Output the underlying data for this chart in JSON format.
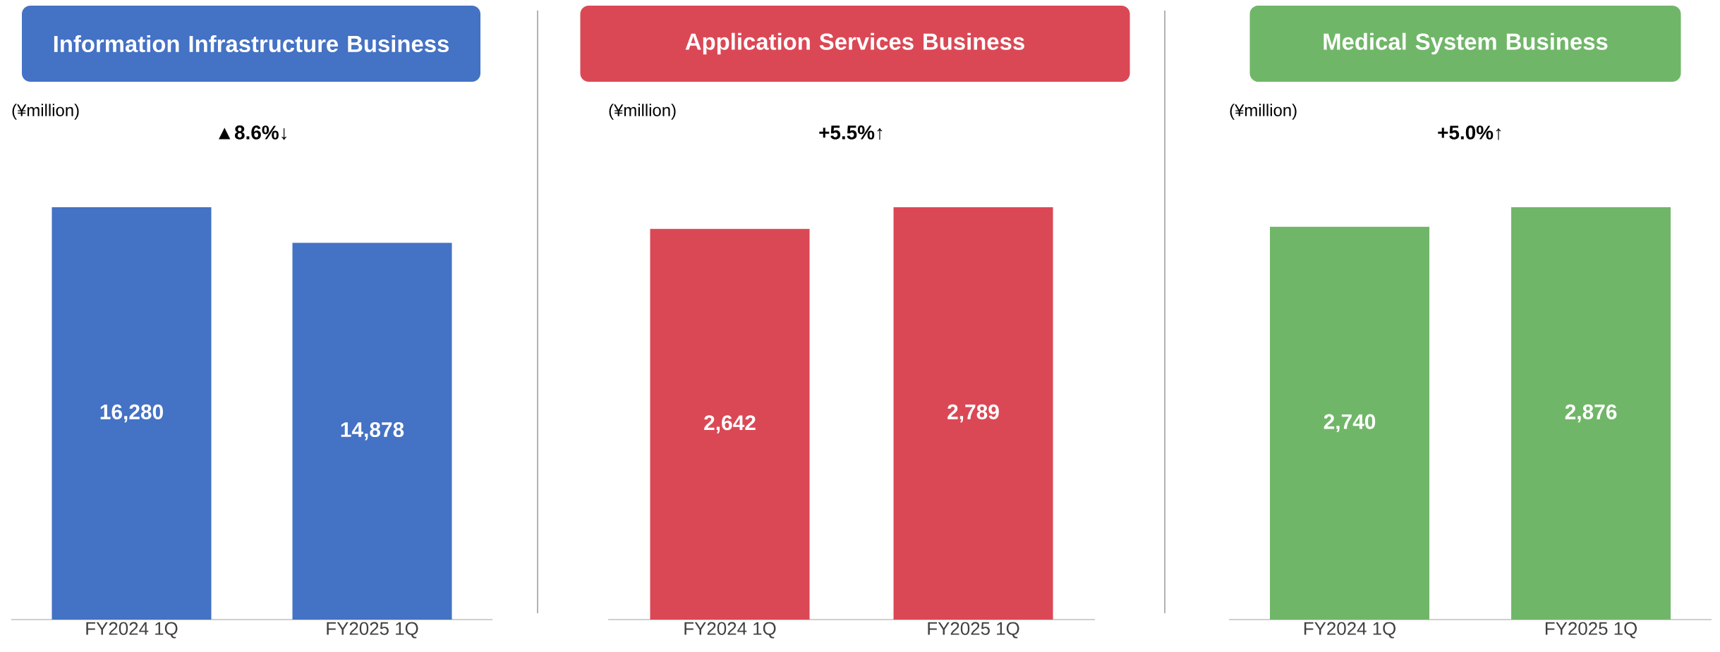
{
  "chart_data": [
    {
      "type": "bar",
      "title": "Information Infrastructure Business",
      "ylabel": "(¥million)",
      "annotations": [
        "▲8.6%↓"
      ],
      "categories": [
        "FY2024 1Q",
        "FY2025 1Q"
      ],
      "values": [
        16280,
        14878
      ],
      "value_labels": [
        "16,280",
        "14,878"
      ],
      "color": "#4472c4"
    },
    {
      "type": "bar",
      "title": "Application Services Business",
      "ylabel": "(¥million)",
      "annotations": [
        "+5.5%↑"
      ],
      "categories": [
        "FY2024 1Q",
        "FY2025 1Q"
      ],
      "values": [
        2642,
        2789
      ],
      "value_labels": [
        "2,642",
        "2,789"
      ],
      "color": "#db4855"
    },
    {
      "type": "bar",
      "title": "Medical System Business",
      "ylabel": "(¥million)",
      "annotations": [
        "+5.0%↑"
      ],
      "categories": [
        "FY2024 1Q",
        "FY2025 1Q"
      ],
      "values": [
        2740,
        2876
      ],
      "value_labels": [
        "2,740",
        "2,876"
      ],
      "color": "#70b668"
    }
  ]
}
